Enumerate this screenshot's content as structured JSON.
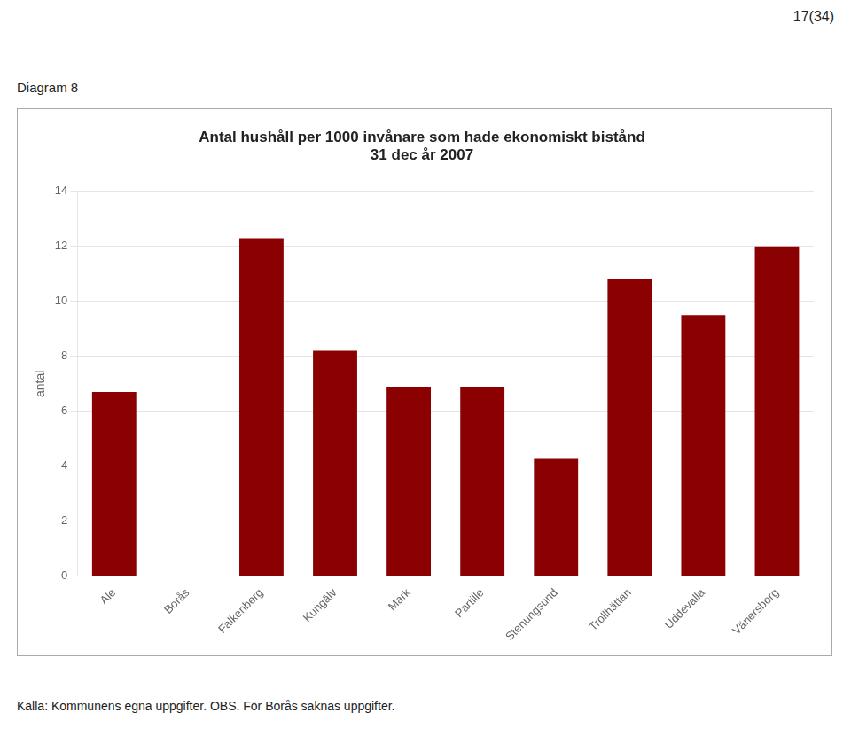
{
  "chart_data": {
    "type": "bar",
    "title": "Antal hushåll per 1000 invånare som hade ekonomiskt bistånd",
    "subtitle": "31 dec år 2007",
    "ylabel": "antal",
    "annotations": [
      "17(34)",
      "Diagram 8",
      "Källa: Kommunens egna uppgifter. OBS. För Borås saknas uppgifter."
    ],
    "categories": [
      "Ale",
      "Borås",
      "Falkenberg",
      "Kungälv",
      "Mark",
      "Partille",
      "Stenungsund",
      "Trollhättan",
      "Uddevalla",
      "Vänersborg"
    ],
    "values": [
      6.7,
      0,
      12.3,
      8.2,
      6.9,
      6.9,
      4.3,
      10.8,
      9.5,
      12.0
    ],
    "color": "#8B0000",
    "ylim": [
      0,
      14
    ],
    "yticks": [
      0,
      2,
      4,
      6,
      8,
      10,
      12,
      14
    ],
    "grid": true
  }
}
